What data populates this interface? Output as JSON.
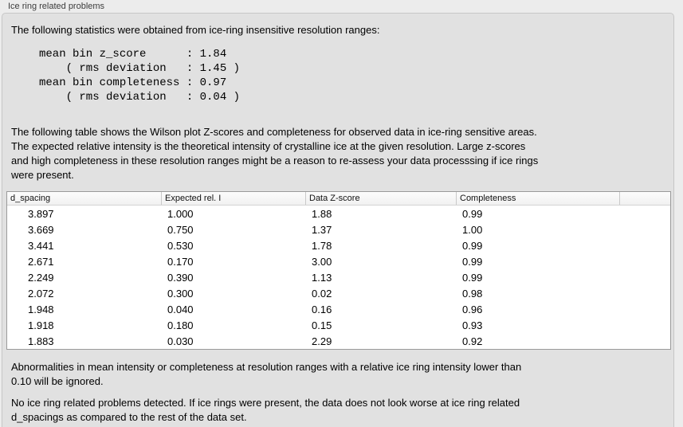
{
  "window": {
    "title": "Ice ring related problems"
  },
  "panel": {
    "intro": "The following statistics were obtained from ice-ring insensitive resolution ranges:",
    "stats_block": "mean bin z_score      : 1.84\n    ( rms deviation   : 1.45 )\nmean bin completeness : 0.97\n    ( rms deviation   : 0.04 )",
    "description": "The following table shows the Wilson plot Z-scores and completeness for observed data in ice-ring sensitive areas.\nThe expected relative intensity is the theoretical intensity of crystalline ice at the given resolution. Large z-scores\nand high completeness in these resolution ranges might be a reason to re-assess your data processsing if ice rings\nwere present.",
    "ignore_note": "Abnormalities in mean intensity or completeness at resolution ranges with a relative ice ring intensity lower than\n0.10 will be ignored.",
    "conclusion": "No ice ring related problems detected. If ice rings were present, the data does not look worse at ice ring related\nd_spacings as compared to the rest of the data set."
  },
  "table": {
    "headers": [
      "d_spacing",
      "Expected rel. I",
      "Data Z-score",
      "Completeness",
      ""
    ],
    "rows": [
      [
        "3.897",
        "1.000",
        "1.88",
        "0.99"
      ],
      [
        "3.669",
        "0.750",
        "1.37",
        "1.00"
      ],
      [
        "3.441",
        "0.530",
        "1.78",
        "0.99"
      ],
      [
        "2.671",
        "0.170",
        "3.00",
        "0.99"
      ],
      [
        "2.249",
        "0.390",
        "1.13",
        "0.99"
      ],
      [
        "2.072",
        "0.300",
        "0.02",
        "0.98"
      ],
      [
        "1.948",
        "0.040",
        "0.16",
        "0.96"
      ],
      [
        "1.918",
        "0.180",
        "0.15",
        "0.93"
      ],
      [
        "1.883",
        "0.030",
        "2.29",
        "0.92"
      ]
    ]
  },
  "colors": {
    "background": "#ececec",
    "panel_background": "#e1e1e1",
    "table_border": "#9a9a9a",
    "text": "#000000"
  }
}
